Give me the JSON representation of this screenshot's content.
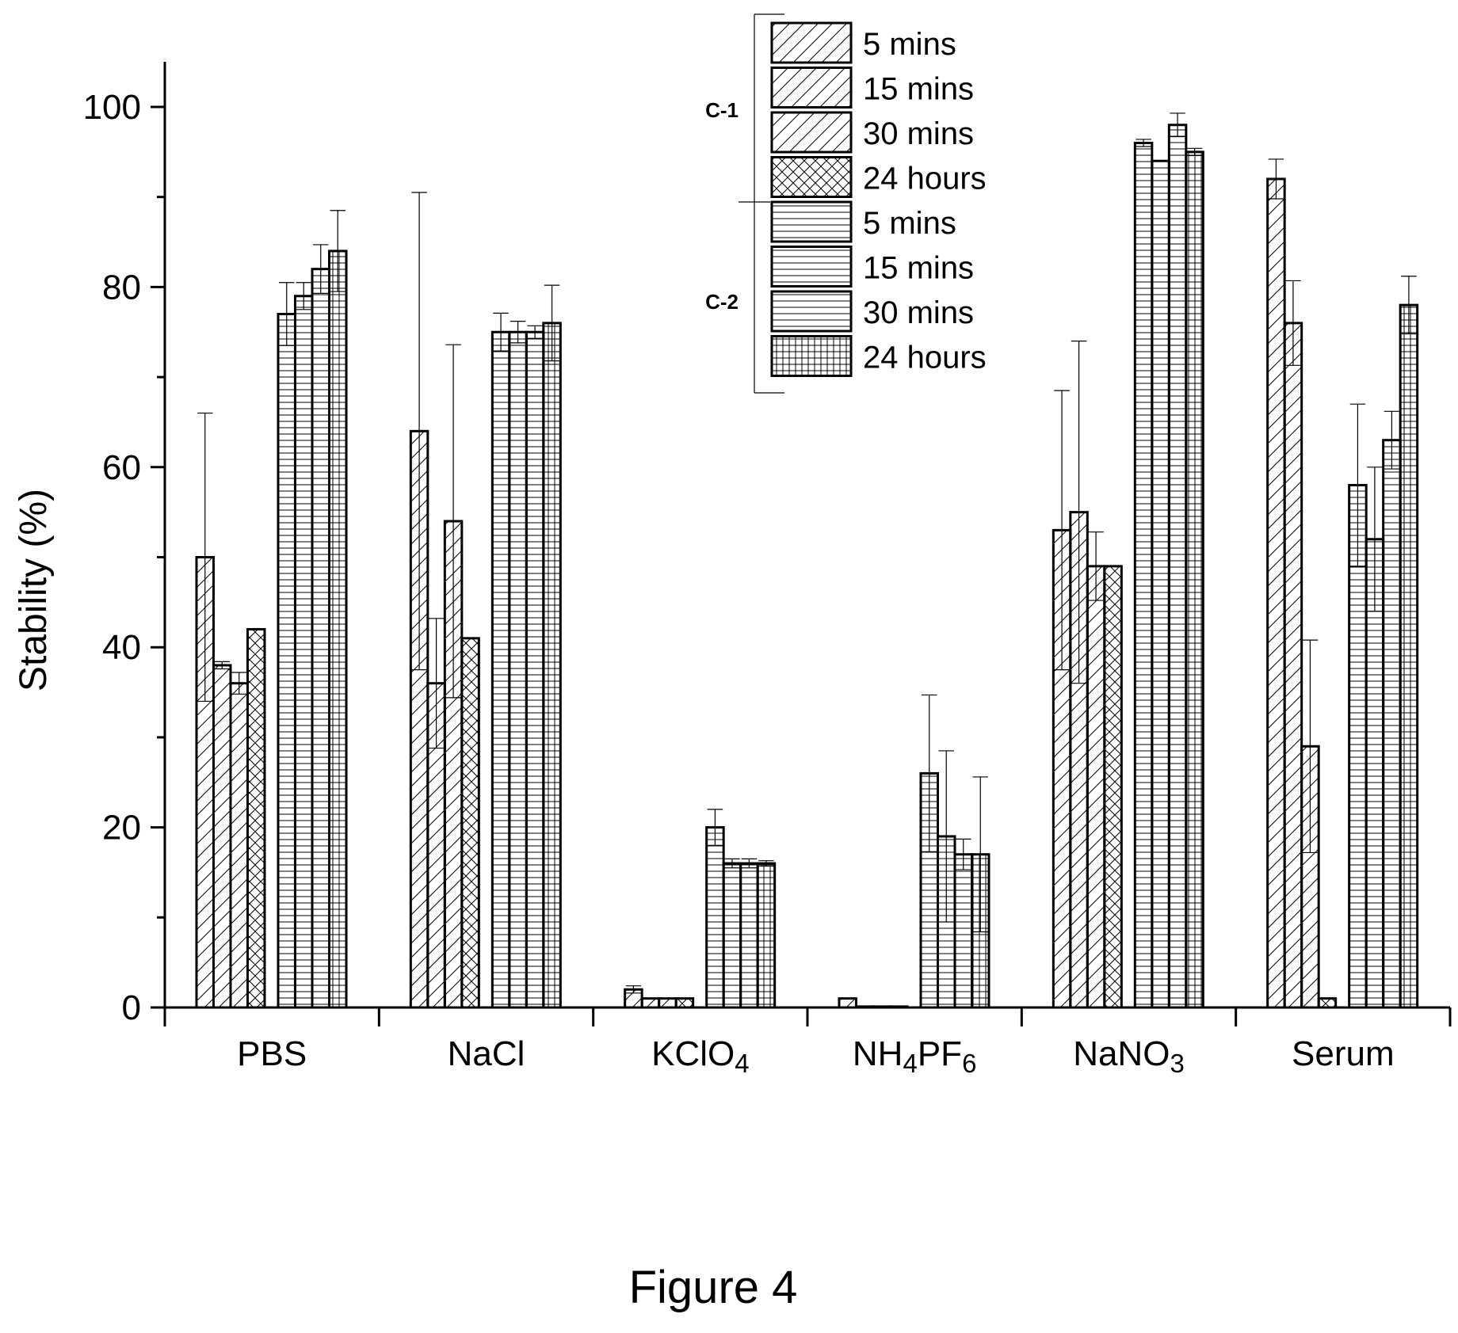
{
  "chart_data": {
    "type": "bar",
    "title": "",
    "ylabel": "Stability (%)",
    "xlabel": "",
    "ylim": [
      0,
      105
    ],
    "yticks_major": [
      0,
      20,
      40,
      60,
      80,
      100
    ],
    "yticks_minor": [
      10,
      30,
      50,
      70,
      90
    ],
    "categories": [
      {
        "name": "PBS",
        "label": "PBS"
      },
      {
        "name": "NaCl",
        "label": "NaCl"
      },
      {
        "name": "KClO4",
        "label": "KClO",
        "sub": "4"
      },
      {
        "name": "NH4PF6",
        "label": "NH",
        "sub": "4",
        "label2": "PF",
        "sub2": "6"
      },
      {
        "name": "NaNO3",
        "label": "NaNO",
        "sub": "3"
      },
      {
        "name": "Serum",
        "label": "Serum"
      }
    ],
    "series": [
      {
        "name": "5 mins",
        "group": "C-1",
        "pattern": "diag",
        "values": [
          50,
          64,
          2,
          1,
          53,
          92
        ],
        "errors": [
          16,
          26.5,
          0.4,
          0,
          15.5,
          2.2
        ]
      },
      {
        "name": "15 mins",
        "group": "C-1",
        "pattern": "diag",
        "values": [
          38,
          36,
          1,
          0.1,
          55,
          76
        ],
        "errors": [
          0.4,
          7.2,
          0,
          0,
          19,
          4.7
        ]
      },
      {
        "name": "30 mins",
        "group": "C-1",
        "pattern": "diag",
        "values": [
          36,
          54,
          1,
          0.1,
          49,
          29
        ],
        "errors": [
          1.2,
          19.6,
          0,
          0,
          3.8,
          11.8
        ]
      },
      {
        "name": "24 hours",
        "group": "C-1",
        "pattern": "crosshatch",
        "values": [
          42,
          41,
          1,
          0.1,
          49,
          1
        ],
        "errors": [
          0,
          0,
          0,
          0,
          0,
          0
        ]
      },
      {
        "name": "5 mins",
        "group": "C-2",
        "pattern": "hlines",
        "values": [
          77,
          75,
          20,
          26,
          96,
          58
        ],
        "errors": [
          3.5,
          2.1,
          2,
          8.7,
          0.4,
          9
        ]
      },
      {
        "name": "15 mins",
        "group": "C-2",
        "pattern": "hlines",
        "values": [
          79,
          75,
          16,
          19,
          94,
          52
        ],
        "errors": [
          1.5,
          1.2,
          0.5,
          9.5,
          0,
          8
        ]
      },
      {
        "name": "30 mins",
        "group": "C-2",
        "pattern": "hlines",
        "values": [
          82,
          75,
          16,
          17,
          98,
          63
        ],
        "errors": [
          2.7,
          0.7,
          0.5,
          1.7,
          1.3,
          3.2
        ]
      },
      {
        "name": "24 hours",
        "group": "C-2",
        "pattern": "grid",
        "values": [
          84,
          76,
          16,
          17,
          95,
          78
        ],
        "errors": [
          4.5,
          4.2,
          0.3,
          8.6,
          0.4,
          3.2
        ]
      }
    ],
    "legend": {
      "placement": "top-center",
      "groups": [
        {
          "label": "C-1"
        },
        {
          "label": "C-2"
        }
      ]
    }
  },
  "caption": "Figure 4"
}
